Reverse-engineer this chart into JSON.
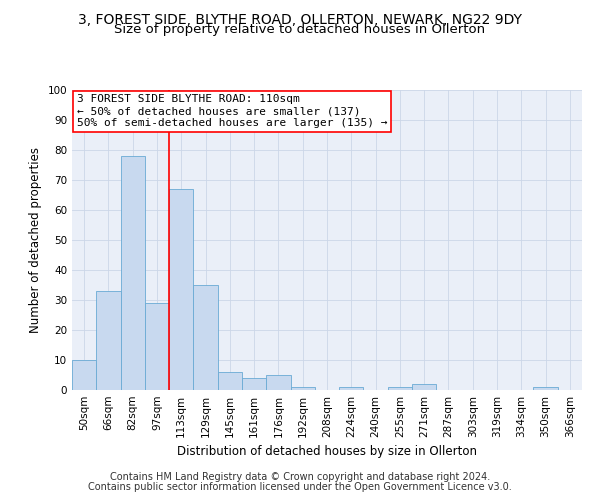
{
  "title_line1": "3, FOREST SIDE, BLYTHE ROAD, OLLERTON, NEWARK, NG22 9DY",
  "title_line2": "Size of property relative to detached houses in Ollerton",
  "xlabel": "Distribution of detached houses by size in Ollerton",
  "ylabel": "Number of detached properties",
  "categories": [
    "50sqm",
    "66sqm",
    "82sqm",
    "97sqm",
    "113sqm",
    "129sqm",
    "145sqm",
    "161sqm",
    "176sqm",
    "192sqm",
    "208sqm",
    "224sqm",
    "240sqm",
    "255sqm",
    "271sqm",
    "287sqm",
    "303sqm",
    "319sqm",
    "334sqm",
    "350sqm",
    "366sqm"
  ],
  "values": [
    10,
    33,
    78,
    29,
    67,
    35,
    6,
    4,
    5,
    1,
    0,
    1,
    0,
    1,
    2,
    0,
    0,
    0,
    0,
    1,
    0
  ],
  "bar_color": "#c8d9ef",
  "bar_edge_color": "#6aaad4",
  "vline_x": 3.5,
  "annotation_text": "3 FOREST SIDE BLYTHE ROAD: 110sqm\n← 50% of detached houses are smaller (137)\n50% of semi-detached houses are larger (135) →",
  "annotation_box_color": "white",
  "annotation_box_edge_color": "red",
  "vline_color": "red",
  "ylim": [
    0,
    100
  ],
  "yticks": [
    0,
    10,
    20,
    30,
    40,
    50,
    60,
    70,
    80,
    90,
    100
  ],
  "footnote_line1": "Contains HM Land Registry data © Crown copyright and database right 2024.",
  "footnote_line2": "Contains public sector information licensed under the Open Government Licence v3.0.",
  "title1_fontsize": 10,
  "title2_fontsize": 9.5,
  "axis_label_fontsize": 8.5,
  "tick_fontsize": 7.5,
  "annotation_fontsize": 8,
  "footnote_fontsize": 7
}
